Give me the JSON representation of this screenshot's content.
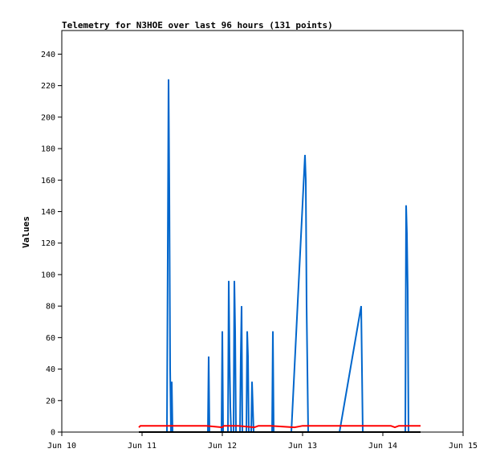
{
  "chart_data": {
    "type": "line",
    "title": "Telemetry for N3HOE over last 96 hours (131 points)",
    "xlabel": "",
    "ylabel": "Values",
    "xlim": [
      0,
      5
    ],
    "ylim": [
      0,
      255
    ],
    "x_ticks": [
      {
        "x": 0,
        "label": "Jun 10"
      },
      {
        "x": 1,
        "label": "Jun 11"
      },
      {
        "x": 2,
        "label": "Jun 12"
      },
      {
        "x": 3,
        "label": "Jun 13"
      },
      {
        "x": 4,
        "label": "Jun 14"
      },
      {
        "x": 5,
        "label": "Jun 15"
      }
    ],
    "y_ticks": [
      0,
      20,
      40,
      60,
      80,
      100,
      120,
      140,
      160,
      180,
      200,
      220,
      240
    ],
    "grid": false,
    "series": [
      {
        "color": "#0066cc",
        "points": [
          [
            0.98,
            0
          ],
          [
            1.31,
            0
          ],
          [
            1.32,
            112
          ],
          [
            1.33,
            224
          ],
          [
            1.34,
            152
          ],
          [
            1.35,
            40
          ],
          [
            1.36,
            0
          ],
          [
            1.37,
            32
          ],
          [
            1.38,
            0
          ],
          [
            1.82,
            0
          ],
          [
            1.83,
            48
          ],
          [
            1.84,
            0
          ],
          [
            1.99,
            0
          ],
          [
            2.0,
            64
          ],
          [
            2.01,
            0
          ],
          [
            2.07,
            0
          ],
          [
            2.08,
            96
          ],
          [
            2.09,
            48
          ],
          [
            2.1,
            16
          ],
          [
            2.11,
            0
          ],
          [
            2.14,
            0
          ],
          [
            2.15,
            96
          ],
          [
            2.16,
            64
          ],
          [
            2.17,
            0
          ],
          [
            2.22,
            0
          ],
          [
            2.23,
            48
          ],
          [
            2.24,
            80
          ],
          [
            2.25,
            0
          ],
          [
            2.3,
            0
          ],
          [
            2.31,
            64
          ],
          [
            2.32,
            48
          ],
          [
            2.33,
            0
          ],
          [
            2.36,
            0
          ],
          [
            2.37,
            32
          ],
          [
            2.38,
            16
          ],
          [
            2.39,
            0
          ],
          [
            2.62,
            0
          ],
          [
            2.63,
            64
          ],
          [
            2.64,
            0
          ],
          [
            2.86,
            0
          ],
          [
            3.03,
            176
          ],
          [
            3.04,
            160
          ],
          [
            3.05,
            80
          ],
          [
            3.07,
            0
          ],
          [
            3.46,
            0
          ],
          [
            3.73,
            80
          ],
          [
            3.74,
            40
          ],
          [
            3.75,
            0
          ],
          [
            4.28,
            0
          ],
          [
            4.29,
            144
          ],
          [
            4.3,
            126
          ],
          [
            4.31,
            90
          ],
          [
            4.32,
            0
          ],
          [
            4.47,
            0
          ]
        ]
      },
      {
        "color": "#ff0000",
        "points": [
          [
            0.96,
            3
          ],
          [
            0.98,
            4
          ],
          [
            1.2,
            4
          ],
          [
            1.4,
            4
          ],
          [
            1.6,
            4
          ],
          [
            1.8,
            4
          ],
          [
            2.0,
            3
          ],
          [
            2.02,
            4
          ],
          [
            2.2,
            4
          ],
          [
            2.4,
            3
          ],
          [
            2.45,
            4
          ],
          [
            2.6,
            4
          ],
          [
            2.9,
            3
          ],
          [
            3.0,
            4
          ],
          [
            3.4,
            4
          ],
          [
            3.8,
            4
          ],
          [
            4.1,
            4
          ],
          [
            4.15,
            3
          ],
          [
            4.2,
            4
          ],
          [
            4.47,
            4
          ]
        ]
      },
      {
        "color": "#000000",
        "points": [
          [
            0.96,
            0
          ],
          [
            4.47,
            0
          ]
        ]
      }
    ]
  }
}
